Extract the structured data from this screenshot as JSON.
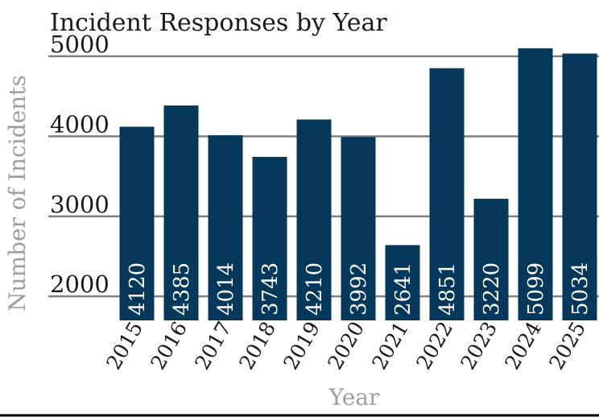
{
  "chart_data": {
    "type": "bar",
    "title": "Incident Responses by Year",
    "xlabel": "Year",
    "ylabel": "Number of Incidents",
    "categories": [
      "2015",
      "2016",
      "2017",
      "2018",
      "2019",
      "2020",
      "2021",
      "2022",
      "2023",
      "2024",
      "2025"
    ],
    "values": [
      4120,
      4385,
      4014,
      3743,
      4210,
      3992,
      2641,
      4851,
      3220,
      5099,
      5034
    ],
    "yticks": [
      2000,
      3000,
      4000,
      5000
    ],
    "ylim": [
      1700,
      5150
    ],
    "grid": true,
    "bar_color": "#05385a",
    "label_color": "#ffffff"
  }
}
